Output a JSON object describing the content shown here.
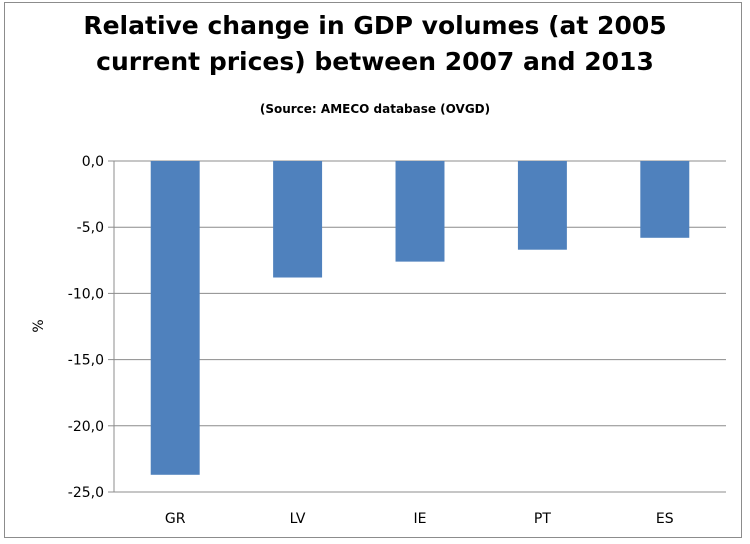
{
  "chart_data": {
    "type": "bar",
    "title_line1": "Relative change in GDP volumes (at 2005",
    "title_line2": "current prices) between 2007 and 2013",
    "subtitle": "(Source: AMECO database (OVGD)",
    "xlabel": "",
    "ylabel": "%",
    "categories": [
      "GR",
      "LV",
      "IE",
      "PT",
      "ES"
    ],
    "values": [
      -23.7,
      -8.8,
      -7.6,
      -6.7,
      -5.8
    ],
    "ylim": [
      -25,
      0
    ],
    "yticks": [
      0,
      -5,
      -10,
      -15,
      -20,
      -25
    ],
    "ytick_labels": [
      "0,0",
      "-5,0",
      "-10,0",
      "-15,0",
      "-20,0",
      "-25,0"
    ],
    "grid": true,
    "bar_color": "#4f81bd"
  }
}
